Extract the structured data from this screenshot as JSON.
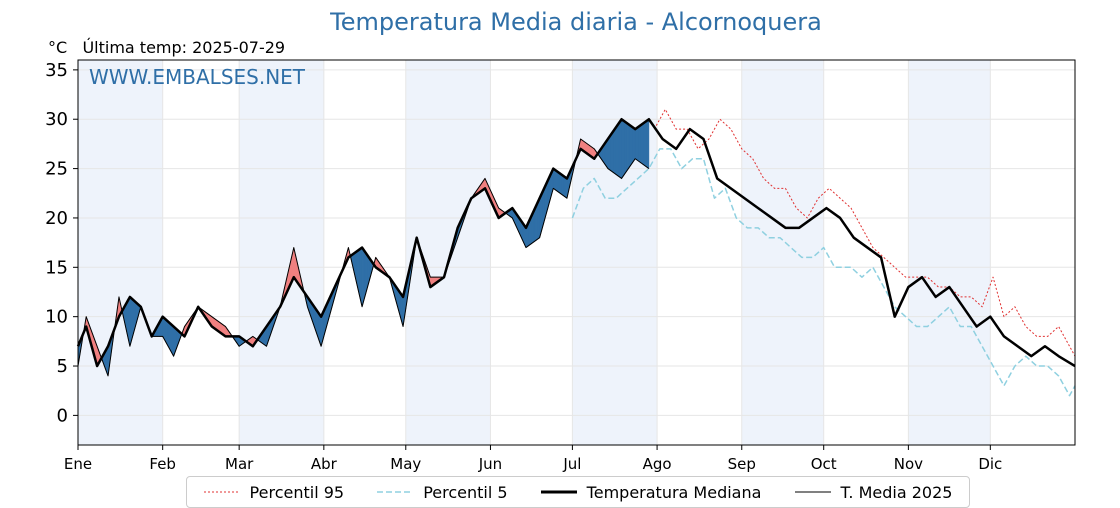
{
  "title": "Temperatura Media diaria - Alcornoquera",
  "unit": "°C",
  "last_temp_label": "Última temp: 2025-07-29",
  "watermark": "WWW.EMBALSES.NET",
  "chart_data": {
    "type": "line",
    "x_unit": "day_of_year",
    "xlim": [
      1,
      366
    ],
    "ylim": [
      -3,
      36
    ],
    "yticks": [
      0,
      5,
      10,
      15,
      20,
      25,
      30,
      35
    ],
    "grid": true,
    "legend_position": "bottom",
    "months": [
      "Ene",
      "Feb",
      "Mar",
      "Abr",
      "May",
      "Jun",
      "Jul",
      "Ago",
      "Sep",
      "Oct",
      "Nov",
      "Dic"
    ],
    "month_start_days": [
      1,
      32,
      60,
      91,
      121,
      152,
      182,
      213,
      244,
      274,
      305,
      335
    ],
    "legend": [
      "Percentil 95",
      "Percentil 5",
      "Temperatura Mediana",
      "T. Media 2025"
    ],
    "series": [
      {
        "name": "Temperatura Mediana",
        "color": "#000000",
        "x": [
          1,
          4,
          8,
          12,
          16,
          20,
          24,
          28,
          32,
          36,
          40,
          45,
          50,
          55,
          60,
          65,
          70,
          75,
          80,
          85,
          90,
          95,
          100,
          105,
          110,
          115,
          120,
          125,
          130,
          135,
          140,
          145,
          150,
          155,
          160,
          165,
          170,
          175,
          180,
          185,
          190,
          195,
          200,
          205,
          210,
          215,
          220,
          225,
          230,
          235,
          240,
          245,
          250,
          255,
          260,
          265,
          270,
          275,
          280,
          285,
          290,
          295,
          300,
          305,
          310,
          315,
          320,
          325,
          330,
          335,
          340,
          345,
          350,
          355,
          360,
          366
        ],
        "y": [
          7,
          9,
          5,
          7,
          10,
          12,
          11,
          8,
          10,
          9,
          8,
          11,
          9,
          8,
          8,
          7,
          9,
          11,
          14,
          12,
          10,
          13,
          16,
          17,
          15,
          14,
          12,
          18,
          13,
          14,
          19,
          22,
          23,
          20,
          21,
          19,
          22,
          25,
          24,
          27,
          26,
          28,
          30,
          29,
          30,
          28,
          27,
          29,
          28,
          24,
          23,
          22,
          21,
          20,
          19,
          19,
          20,
          21,
          20,
          18,
          17,
          16,
          10,
          13,
          14,
          12,
          13,
          11,
          9,
          10,
          8,
          7,
          6,
          7,
          6,
          5
        ]
      },
      {
        "name": "T. Media 2025",
        "color": "#000000",
        "x": [
          1,
          4,
          8,
          12,
          16,
          20,
          24,
          28,
          32,
          36,
          40,
          45,
          50,
          55,
          60,
          65,
          70,
          75,
          80,
          85,
          90,
          95,
          100,
          105,
          110,
          115,
          120,
          125,
          130,
          135,
          140,
          145,
          150,
          155,
          160,
          165,
          170,
          175,
          180,
          185,
          190,
          195,
          200,
          205,
          210
        ],
        "y": [
          5,
          10,
          7,
          4,
          12,
          7,
          11,
          8,
          8,
          6,
          9,
          11,
          10,
          9,
          7,
          8,
          7,
          11,
          17,
          11,
          7,
          12,
          17,
          11,
          16,
          14,
          9,
          18,
          14,
          14,
          18,
          22,
          24,
          21,
          20,
          17,
          18,
          23,
          22,
          28,
          27,
          25,
          24,
          26,
          25
        ]
      },
      {
        "name": "Percentil 95",
        "color": "#e03030",
        "x": [
          212,
          216,
          220,
          224,
          228,
          232,
          236,
          240,
          244,
          248,
          252,
          256,
          260,
          264,
          268,
          272,
          276,
          280,
          284,
          288,
          292,
          296,
          300,
          304,
          308,
          312,
          316,
          320,
          324,
          328,
          332,
          336,
          340,
          344,
          348,
          352,
          356,
          360,
          364,
          366
        ],
        "y": [
          29,
          31,
          29,
          29,
          27,
          28,
          30,
          29,
          27,
          26,
          24,
          23,
          23,
          21,
          20,
          22,
          23,
          22,
          21,
          19,
          17,
          16,
          15,
          14,
          14,
          14,
          13,
          13,
          12,
          12,
          11,
          14,
          10,
          11,
          9,
          8,
          8,
          9,
          7,
          6
        ]
      },
      {
        "name": "Percentil 5",
        "color": "#8fd0e0",
        "x": [
          182,
          186,
          190,
          194,
          198,
          202,
          206,
          210,
          214,
          218,
          222,
          226,
          230,
          234,
          238,
          242,
          246,
          250,
          254,
          258,
          262,
          266,
          270,
          274,
          278,
          284,
          288,
          292,
          296,
          300,
          304,
          308,
          312,
          316,
          320,
          324,
          328,
          332,
          336,
          340,
          344,
          348,
          352,
          356,
          360,
          364,
          366
        ],
        "y": [
          20,
          23,
          24,
          22,
          22,
          23,
          24,
          25,
          27,
          27,
          25,
          26,
          26,
          22,
          23,
          20,
          19,
          19,
          18,
          18,
          17,
          16,
          16,
          17,
          15,
          15,
          14,
          15,
          13,
          11,
          10,
          9,
          9,
          10,
          11,
          9,
          9,
          7,
          5,
          3,
          5,
          6,
          5,
          5,
          4,
          2,
          3
        ]
      }
    ]
  },
  "legend_colors": {
    "p95": "#e03030",
    "p5": "#8fd0e0",
    "median": "#000000",
    "media2025": "#000000",
    "above": "#f08080",
    "below": "#2f6fa7",
    "shade": "#eef3fb"
  }
}
